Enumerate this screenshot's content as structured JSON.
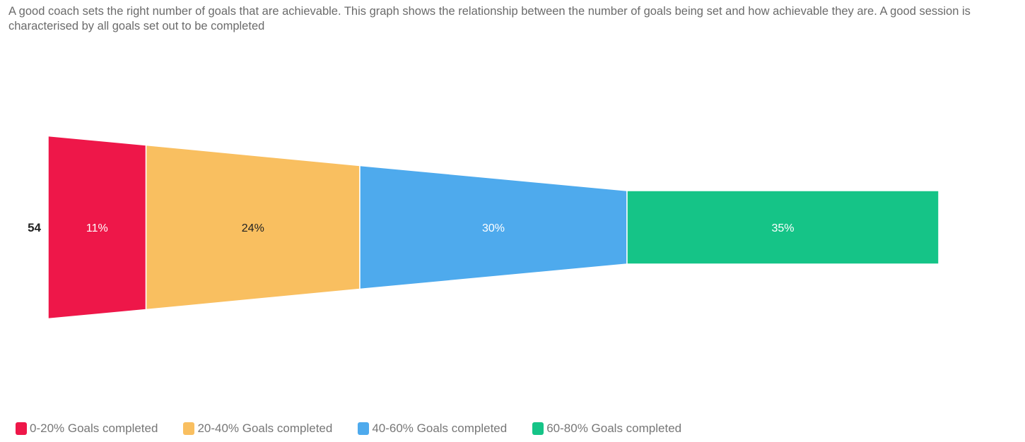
{
  "description": "A good coach sets the right number of goals that are achievable. This graph shows the relationship between the number of goals being set and how achievable they are. A good session is characterised by all goals set out to be completed",
  "chart_data": {
    "type": "funnel",
    "category_label": "54",
    "series": [
      {
        "name": "0-20% Goals completed",
        "value": 11,
        "label": "11%",
        "color": "#ee1749",
        "label_color": "#ffffff"
      },
      {
        "name": "20-40% Goals completed",
        "value": 24,
        "label": "24%",
        "color": "#f9bf60",
        "label_color": "#222222"
      },
      {
        "name": "40-60% Goals completed",
        "value": 30,
        "label": "30%",
        "color": "#4eaaed",
        "label_color": "#ffffff"
      },
      {
        "name": "60-80% Goals completed",
        "value": 35,
        "label": "35%",
        "color": "#15c487",
        "label_color": "#ffffff"
      }
    ],
    "legend_position": "bottom-left"
  }
}
